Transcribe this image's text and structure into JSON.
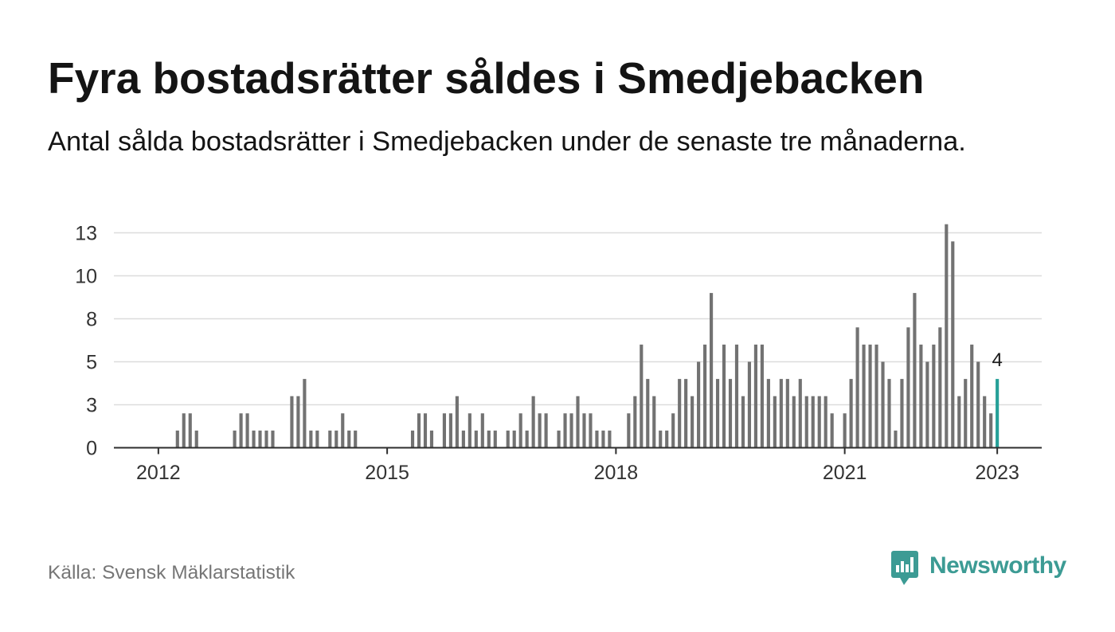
{
  "brand": {
    "name": "Newsworthy",
    "icon": "newsworthy-logo-icon"
  },
  "colors": {
    "bar": "#727272",
    "highlight": "#26a098",
    "grid": "#dcdcdc",
    "axis": "#2e2e2e",
    "brand": "#3c9b94"
  },
  "chart_data": {
    "type": "bar",
    "title": "Fyra bostadsrätter såldes i Smedjebacken",
    "subtitle": "Antal sålda bostadsrätter i Smedjebacken under de senaste tre månaderna.",
    "source": "Källa: Svensk Mäklarstatistik",
    "x": [
      "2012-01",
      "2012-02",
      "2012-03",
      "2012-04",
      "2012-05",
      "2012-06",
      "2012-07",
      "2012-08",
      "2012-09",
      "2012-10",
      "2012-11",
      "2012-12",
      "2013-01",
      "2013-02",
      "2013-03",
      "2013-04",
      "2013-05",
      "2013-06",
      "2013-07",
      "2013-08",
      "2013-09",
      "2013-10",
      "2013-11",
      "2013-12",
      "2014-01",
      "2014-02",
      "2014-03",
      "2014-04",
      "2014-05",
      "2014-06",
      "2014-07",
      "2014-08",
      "2014-09",
      "2014-10",
      "2014-11",
      "2014-12",
      "2015-01",
      "2015-02",
      "2015-03",
      "2015-04",
      "2015-05",
      "2015-06",
      "2015-07",
      "2015-08",
      "2015-09",
      "2015-10",
      "2015-11",
      "2015-12",
      "2016-01",
      "2016-02",
      "2016-03",
      "2016-04",
      "2016-05",
      "2016-06",
      "2016-07",
      "2016-08",
      "2016-09",
      "2016-10",
      "2016-11",
      "2016-12",
      "2017-01",
      "2017-02",
      "2017-03",
      "2017-04",
      "2017-05",
      "2017-06",
      "2017-07",
      "2017-08",
      "2017-09",
      "2017-10",
      "2017-11",
      "2017-12",
      "2018-01",
      "2018-02",
      "2018-03",
      "2018-04",
      "2018-05",
      "2018-06",
      "2018-07",
      "2018-08",
      "2018-09",
      "2018-10",
      "2018-11",
      "2018-12",
      "2019-01",
      "2019-02",
      "2019-03",
      "2019-04",
      "2019-05",
      "2019-06",
      "2019-07",
      "2019-08",
      "2019-09",
      "2019-10",
      "2019-11",
      "2019-12",
      "2020-01",
      "2020-02",
      "2020-03",
      "2020-04",
      "2020-05",
      "2020-06",
      "2020-07",
      "2020-08",
      "2020-09",
      "2020-10",
      "2020-11",
      "2020-12",
      "2021-01",
      "2021-02",
      "2021-03",
      "2021-04",
      "2021-05",
      "2021-06",
      "2021-07",
      "2021-08",
      "2021-09",
      "2021-10",
      "2021-11",
      "2021-12",
      "2022-01",
      "2022-02",
      "2022-03",
      "2022-04",
      "2022-05",
      "2022-06",
      "2022-07",
      "2022-08",
      "2022-09",
      "2022-10",
      "2022-11",
      "2022-12",
      "2023-01"
    ],
    "values": [
      0,
      0,
      0,
      1,
      2,
      2,
      1,
      0,
      0,
      0,
      0,
      0,
      1,
      2,
      2,
      1,
      1,
      1,
      1,
      0,
      0,
      3,
      3,
      4,
      1,
      1,
      0,
      1,
      1,
      2,
      1,
      1,
      0,
      0,
      0,
      0,
      0,
      0,
      0,
      0,
      1,
      2,
      2,
      1,
      0,
      2,
      2,
      3,
      1,
      2,
      1,
      2,
      1,
      1,
      0,
      1,
      1,
      2,
      1,
      3,
      2,
      2,
      0,
      1,
      2,
      2,
      3,
      2,
      2,
      1,
      1,
      1,
      0,
      0,
      2,
      3,
      6,
      4,
      3,
      1,
      1,
      2,
      4,
      4,
      3,
      5,
      6,
      9,
      4,
      6,
      4,
      6,
      3,
      5,
      6,
      6,
      4,
      3,
      4,
      4,
      3,
      4,
      3,
      3,
      3,
      3,
      2,
      0,
      2,
      4,
      7,
      6,
      6,
      6,
      5,
      4,
      1,
      4,
      7,
      9,
      6,
      5,
      6,
      7,
      13,
      12,
      3,
      4,
      6,
      5,
      3,
      2,
      4
    ],
    "highlight": {
      "x": "2023-01",
      "label": "4"
    },
    "xticks": [
      "2012",
      "2015",
      "2018",
      "2021",
      "2023"
    ],
    "yticks": [
      0,
      2.5,
      5,
      7.5,
      10,
      12.5
    ],
    "ytick_labels": [
      "0",
      "3",
      "5",
      "8",
      "10",
      "13"
    ],
    "xlim": [
      "2011-06",
      "2023-08"
    ],
    "ylim": [
      0,
      13
    ],
    "grid": true
  }
}
